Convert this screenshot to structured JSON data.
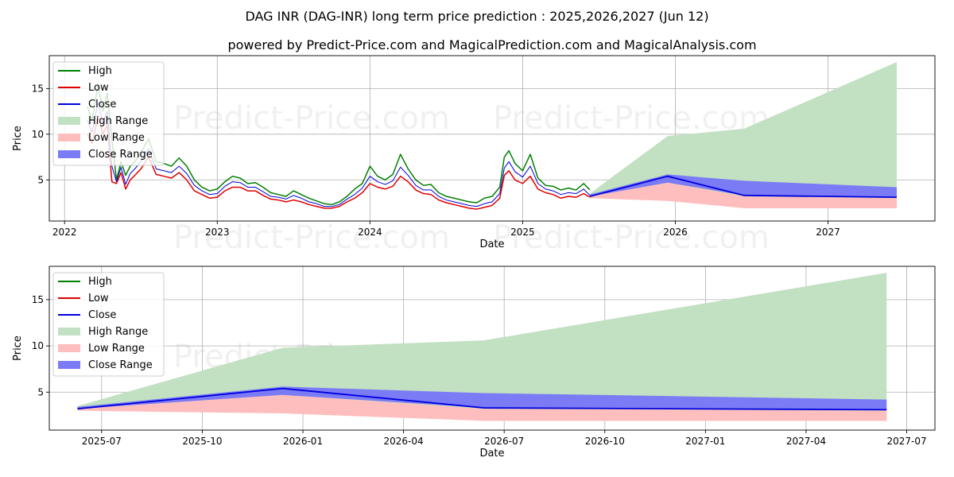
{
  "title": "DAG INR (DAG-INR) long term price prediction : 2025,2026,2027 (Jun 12)",
  "subtitle": "powered by Predict-Price.com and MagicalPrediction.com and MagicalAnalysis.com",
  "watermark": "Predict-Price.com",
  "colors": {
    "high": "#008000",
    "low": "#e00000",
    "close": "#0000dd",
    "high_range": "#c2e0c2",
    "low_range": "#ffbebe",
    "close_range": "#7b7bf5",
    "grid": "#b0b0b0"
  },
  "chart_data": [
    {
      "type": "line",
      "title": "",
      "xlabel": "Date",
      "ylabel": "Price",
      "grid": true,
      "legend_position": "top-left",
      "xlim": [
        2021.9,
        2027.7
      ],
      "ylim": [
        0.5,
        18.6
      ],
      "x_ticks": [
        2022,
        2023,
        2024,
        2025,
        2026,
        2027
      ],
      "x_tick_labels": [
        "2022",
        "2023",
        "2024",
        "2025",
        "2026",
        "2027"
      ],
      "y_ticks": [
        5,
        10,
        15
      ],
      "y_tick_labels": [
        "5",
        "10",
        "15"
      ],
      "legend": [
        "High",
        "Low",
        "Close",
        "High Range",
        "Low Range",
        "Close Range"
      ],
      "history": {
        "x": [
          2022.15,
          2022.18,
          2022.22,
          2022.25,
          2022.28,
          2022.31,
          2022.34,
          2022.37,
          2022.4,
          2022.43,
          2022.46,
          2022.5,
          2022.55,
          2022.6,
          2022.65,
          2022.7,
          2022.75,
          2022.8,
          2022.85,
          2022.9,
          2022.95,
          2023.0,
          2023.05,
          2023.1,
          2023.15,
          2023.2,
          2023.25,
          2023.3,
          2023.35,
          2023.4,
          2023.45,
          2023.5,
          2023.55,
          2023.6,
          2023.65,
          2023.7,
          2023.75,
          2023.8,
          2023.85,
          2023.9,
          2023.95,
          2024.0,
          2024.05,
          2024.1,
          2024.15,
          2024.2,
          2024.25,
          2024.3,
          2024.35,
          2024.4,
          2024.45,
          2024.5,
          2024.55,
          2024.6,
          2024.65,
          2024.7,
          2024.75,
          2024.8,
          2024.85,
          2024.88,
          2024.91,
          2024.95,
          2025.0,
          2025.05,
          2025.1,
          2025.15,
          2025.2,
          2025.25,
          2025.3,
          2025.35,
          2025.4,
          2025.44
        ],
        "high": [
          13.0,
          11.5,
          15.5,
          12.5,
          14.5,
          9.5,
          5.0,
          7.0,
          5.5,
          6.5,
          7.0,
          8.0,
          9.5,
          7.0,
          6.8,
          6.5,
          7.4,
          6.5,
          5.0,
          4.2,
          3.8,
          4.0,
          4.8,
          5.4,
          5.2,
          4.6,
          4.7,
          4.2,
          3.6,
          3.4,
          3.2,
          3.8,
          3.4,
          3.0,
          2.7,
          2.4,
          2.3,
          2.6,
          3.2,
          4.0,
          4.6,
          6.5,
          5.4,
          5.0,
          5.6,
          7.8,
          6.2,
          5.0,
          4.4,
          4.5,
          3.6,
          3.2,
          3.0,
          2.8,
          2.6,
          2.5,
          3.0,
          3.2,
          4.2,
          7.5,
          8.2,
          6.8,
          6.0,
          7.8,
          5.2,
          4.4,
          4.3,
          3.9,
          4.1,
          3.9,
          4.6,
          3.9
        ],
        "low": [
          10.0,
          9.0,
          12.0,
          10.0,
          11.0,
          4.8,
          4.6,
          5.8,
          4.0,
          5.0,
          5.5,
          6.2,
          7.5,
          5.6,
          5.4,
          5.2,
          5.8,
          5.0,
          3.8,
          3.4,
          3.0,
          3.1,
          3.8,
          4.2,
          4.2,
          3.8,
          3.8,
          3.3,
          2.9,
          2.8,
          2.6,
          2.8,
          2.6,
          2.3,
          2.1,
          1.9,
          1.9,
          2.1,
          2.6,
          3.0,
          3.6,
          4.6,
          4.2,
          4.0,
          4.3,
          5.4,
          4.8,
          3.9,
          3.5,
          3.4,
          2.8,
          2.5,
          2.3,
          2.1,
          1.9,
          1.8,
          2.0,
          2.2,
          3.0,
          5.5,
          6.0,
          5.0,
          4.6,
          5.4,
          4.0,
          3.6,
          3.4,
          3.0,
          3.2,
          3.1,
          3.5,
          3.1
        ],
        "close": [
          11.5,
          10.2,
          13.5,
          11.2,
          12.5,
          6.5,
          4.8,
          6.4,
          4.5,
          5.7,
          6.2,
          7.0,
          8.4,
          6.2,
          6.0,
          5.8,
          6.5,
          5.7,
          4.4,
          3.8,
          3.4,
          3.5,
          4.3,
          4.8,
          4.7,
          4.2,
          4.2,
          3.7,
          3.2,
          3.1,
          2.9,
          3.3,
          3.0,
          2.6,
          2.4,
          2.1,
          2.1,
          2.3,
          2.9,
          3.4,
          4.1,
          5.4,
          4.8,
          4.5,
          4.9,
          6.4,
          5.5,
          4.4,
          3.9,
          3.9,
          3.2,
          2.8,
          2.6,
          2.4,
          2.2,
          2.1,
          2.4,
          2.6,
          3.5,
          6.3,
          7.0,
          5.9,
          5.3,
          6.5,
          4.6,
          4.0,
          3.8,
          3.4,
          3.6,
          3.5,
          4.0,
          3.3
        ]
      },
      "forecast": {
        "x": [
          2025.44,
          2025.95,
          2026.45,
          2027.45
        ],
        "close": [
          3.2,
          5.4,
          3.3,
          3.1
        ],
        "high_range": [
          [
            3.2,
            3.5
          ],
          [
            4.7,
            9.8
          ],
          [
            1.9,
            10.6
          ],
          [
            1.9,
            17.9
          ]
        ],
        "low_range": [
          [
            3.0,
            3.2
          ],
          [
            2.7,
            4.7
          ],
          [
            1.9,
            3.2
          ],
          [
            1.9,
            3.0
          ]
        ],
        "close_range": [
          [
            3.2,
            3.4
          ],
          [
            4.7,
            5.6
          ],
          [
            3.3,
            4.9
          ],
          [
            3.1,
            4.2
          ]
        ]
      }
    },
    {
      "type": "line",
      "title": "",
      "xlabel": "Date",
      "ylabel": "Price",
      "grid": true,
      "legend_position": "top-left",
      "xlim": [
        2025.37,
        2027.57
      ],
      "ylim": [
        0.9,
        18.6
      ],
      "x_ticks": [
        2025.5,
        2025.75,
        2026.0,
        2026.25,
        2026.5,
        2026.75,
        2027.0,
        2027.25,
        2027.5
      ],
      "x_tick_labels": [
        "2025-07",
        "2025-10",
        "2026-01",
        "2026-04",
        "2026-07",
        "2026-10",
        "2027-01",
        "2027-04",
        "2027-07"
      ],
      "y_ticks": [
        5,
        10,
        15
      ],
      "y_tick_labels": [
        "5",
        "10",
        "15"
      ],
      "legend": [
        "High",
        "Low",
        "Close",
        "High Range",
        "Low Range",
        "Close Range"
      ],
      "forecast": {
        "x": [
          2025.44,
          2025.95,
          2026.45,
          2027.45
        ],
        "close": [
          3.2,
          5.4,
          3.3,
          3.1
        ],
        "high_range": [
          [
            3.2,
            3.5
          ],
          [
            4.7,
            9.8
          ],
          [
            1.9,
            10.6
          ],
          [
            1.9,
            17.9
          ]
        ],
        "low_range": [
          [
            3.0,
            3.2
          ],
          [
            2.7,
            4.7
          ],
          [
            1.9,
            3.2
          ],
          [
            1.9,
            3.0
          ]
        ],
        "close_range": [
          [
            3.2,
            3.4
          ],
          [
            4.7,
            5.6
          ],
          [
            3.3,
            4.9
          ],
          [
            3.1,
            4.2
          ]
        ]
      }
    }
  ]
}
